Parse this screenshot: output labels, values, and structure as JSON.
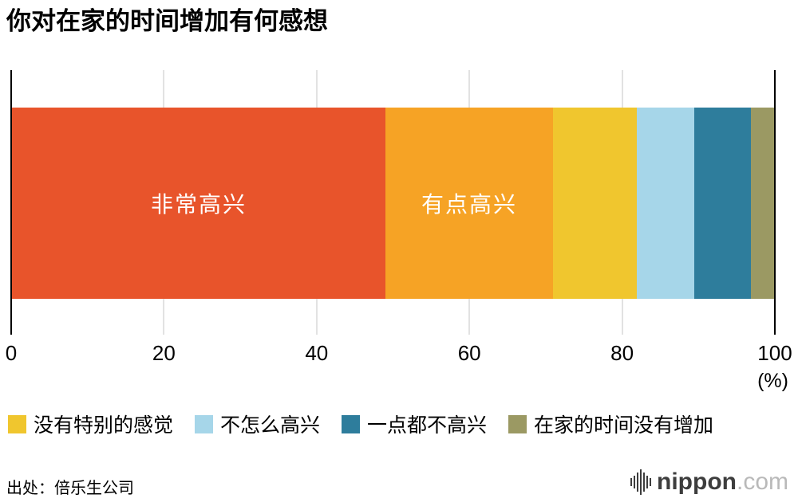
{
  "title": "你对在家的时间增加有何感想",
  "chart_data": {
    "type": "bar",
    "variant": "horizontal-stacked",
    "title": "你对在家的时间增加有何感想",
    "xlim": [
      0,
      100
    ],
    "x_ticks": [
      0,
      20,
      40,
      60,
      80,
      100
    ],
    "x_unit": "(%)",
    "grid": true,
    "legend_position": "bottom",
    "series": [
      {
        "name": "非常高兴",
        "value": 49,
        "color": "#e8542b",
        "show_label": true
      },
      {
        "name": "有点高兴",
        "value": 22,
        "color": "#f6a325",
        "show_label": true
      },
      {
        "name": "没有特别的感觉",
        "value": 11,
        "color": "#f0c62e",
        "show_label": false
      },
      {
        "name": "不怎么高兴",
        "value": 7.5,
        "color": "#a6d6e9",
        "show_label": false
      },
      {
        "name": "一点都不高兴",
        "value": 7.5,
        "color": "#2e7d9c",
        "show_label": false
      },
      {
        "name": "在家的时间没有增加",
        "value": 3,
        "color": "#9b9963",
        "show_label": false
      }
    ]
  },
  "legend": [
    {
      "label": "没有特别的感觉",
      "color": "#f0c62e"
    },
    {
      "label": "不怎么高兴",
      "color": "#a6d6e9"
    },
    {
      "label": "一点都不高兴",
      "color": "#2e7d9c"
    },
    {
      "label": "在家的时间没有增加",
      "color": "#9b9963"
    }
  ],
  "source": "出处：倍乐生公司",
  "branding": {
    "icon": "soundwave-icon",
    "name": "nippon",
    "tld": ".com",
    "name_color": "#3d3d3d",
    "tld_color": "#b9b9b9"
  }
}
